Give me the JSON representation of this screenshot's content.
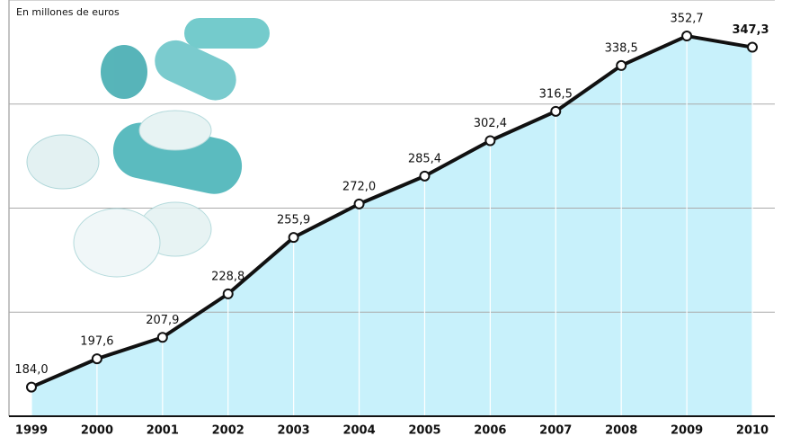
{
  "chart_data": {
    "type": "line",
    "subtitle": "En millones de euros",
    "categories": [
      "1999",
      "2000",
      "2001",
      "2002",
      "2003",
      "2004",
      "2005",
      "2006",
      "2007",
      "2008",
      "2009",
      "2010"
    ],
    "values": [
      184.0,
      197.6,
      207.9,
      228.8,
      255.9,
      272.0,
      285.4,
      302.4,
      316.5,
      338.5,
      352.7,
      347.3
    ],
    "value_labels": [
      "184,0",
      "197,6",
      "207,9",
      "228,8",
      "255,9",
      "272,0",
      "285,4",
      "302,4",
      "316,5",
      "338,5",
      "352,7",
      "347,3"
    ],
    "color": "#111111",
    "area_color": "#c8f1fb",
    "ylim": [
      170,
      370
    ],
    "yticks": [
      220,
      270,
      320,
      370
    ],
    "grid": true
  }
}
